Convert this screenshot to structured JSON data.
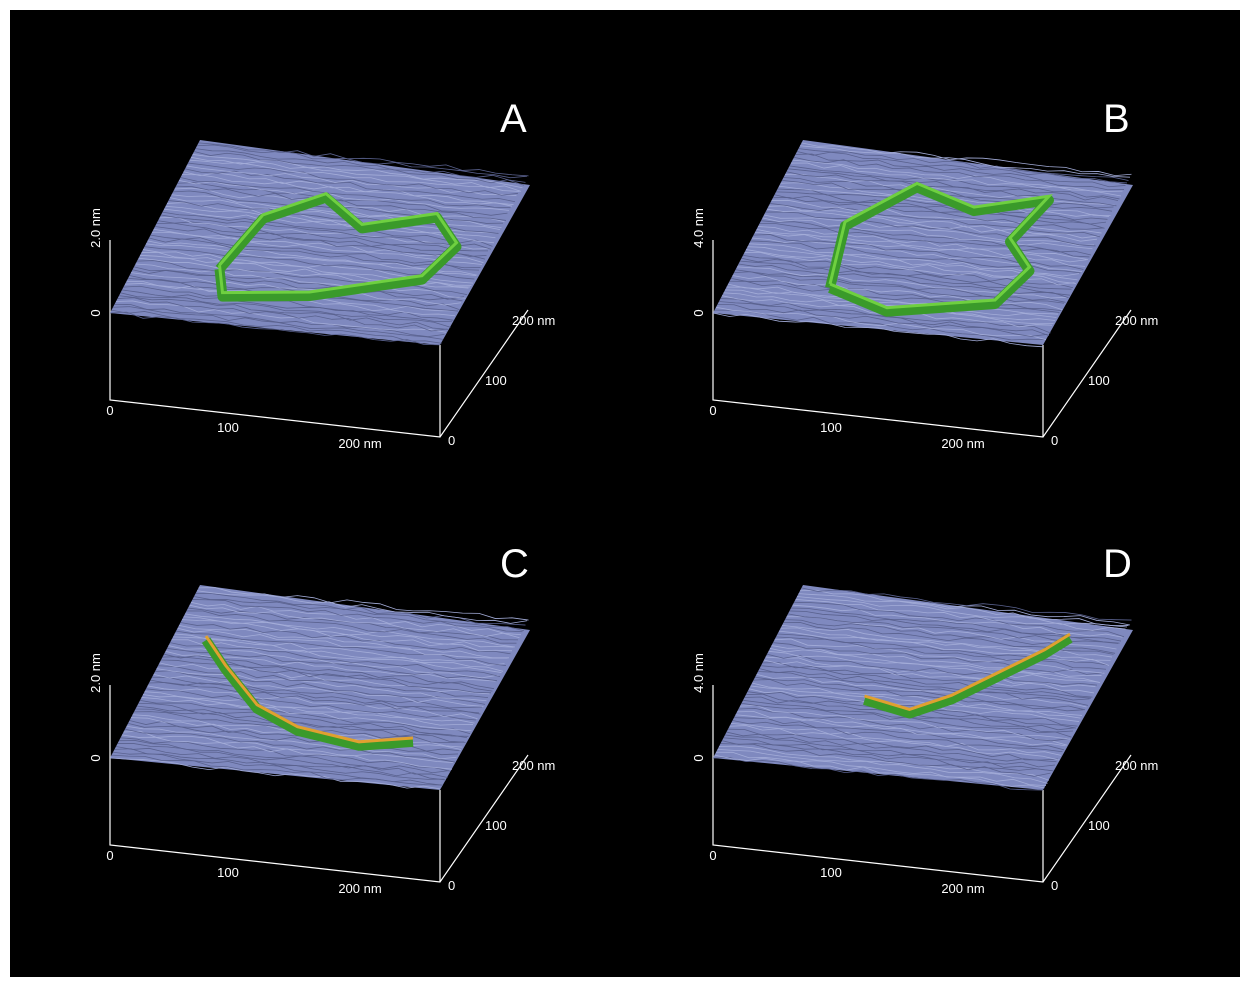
{
  "panels": [
    {
      "label": "A",
      "z_ticks": [
        "2.0 nm",
        "0"
      ],
      "x_ticks": [
        "0",
        "100",
        "200 nm"
      ],
      "y_ticks": [
        "0",
        "100",
        "200 nm"
      ]
    },
    {
      "label": "B",
      "z_ticks": [
        "4.0 nm",
        "0"
      ],
      "x_ticks": [
        "0",
        "100",
        "200 nm"
      ],
      "y_ticks": [
        "0",
        "100",
        "200 nm"
      ]
    },
    {
      "label": "C",
      "z_ticks": [
        "2.0 nm",
        "0"
      ],
      "x_ticks": [
        "0",
        "100",
        "200 nm"
      ],
      "y_ticks": [
        "0",
        "100",
        "200 nm"
      ]
    },
    {
      "label": "D",
      "z_ticks": [
        "4.0 nm",
        "0"
      ],
      "x_ticks": [
        "0",
        "100",
        "200 nm"
      ],
      "y_ticks": [
        "0",
        "100",
        "200 nm"
      ]
    }
  ]
}
